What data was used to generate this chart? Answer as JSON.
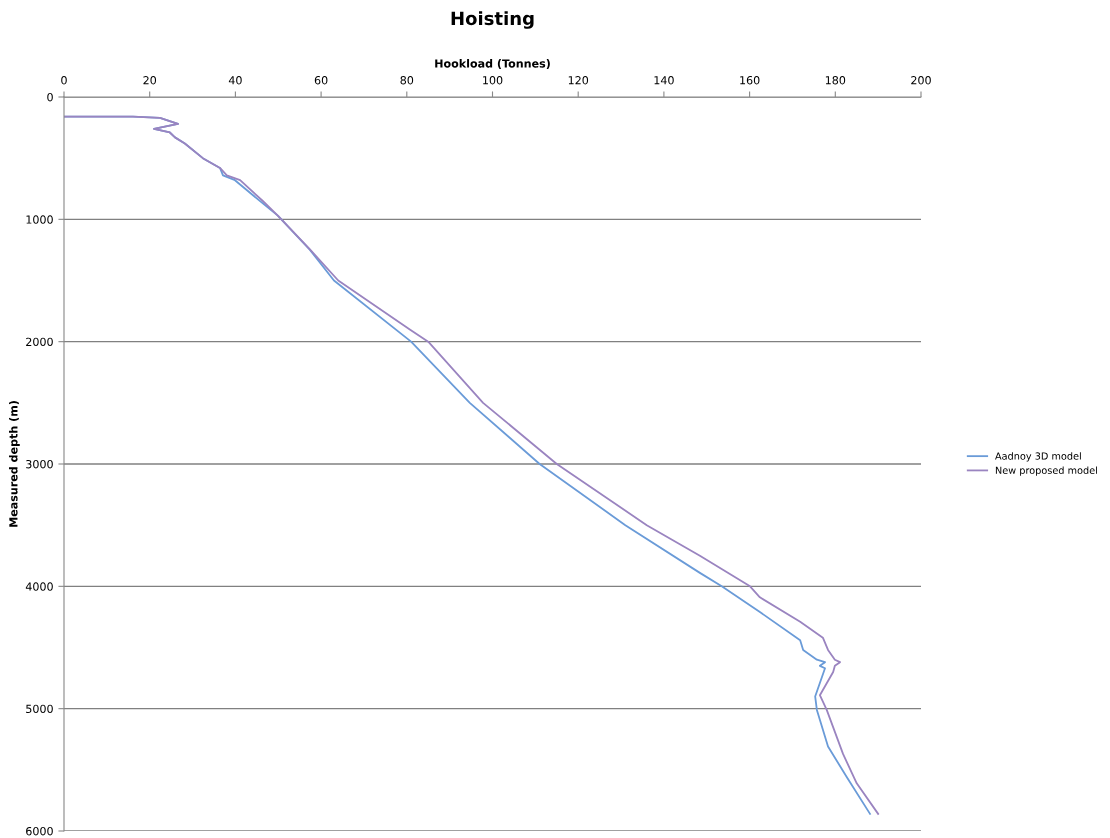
{
  "chart_data": {
    "type": "line",
    "title": "Hoisting",
    "xlabel": "Hookload (Tonnes)",
    "ylabel": "Measured depth (m)",
    "xlim": [
      0,
      200
    ],
    "xticks": [
      0,
      20,
      40,
      60,
      80,
      100,
      120,
      140,
      160,
      180,
      200
    ],
    "ylim": [
      6000,
      0
    ],
    "yticks": [
      0,
      1000,
      2000,
      3000,
      4000,
      5000,
      6000
    ],
    "grid": "y",
    "legend": "right",
    "marker": "none",
    "line_style": "solid",
    "series": [
      {
        "name": "Aadnoy 3D model",
        "color": "#6a9bd8",
        "x": [
          0,
          16.1,
          22.4,
          26.6,
          21.0,
          24.7,
          25.9,
          28.2,
          32.4,
          36.4,
          37.1,
          39.9,
          46.4,
          49.9,
          57.4,
          63,
          81,
          94.7,
          111,
          131,
          148.4,
          153.5,
          162.4,
          171.8,
          172.5,
          175.7,
          177.6,
          176.4,
          177.6,
          175.3,
          175.7,
          178.3,
          182.7,
          188.1
        ],
        "values": [
          160,
          160,
          170,
          220,
          260,
          290,
          330,
          380,
          500,
          580,
          640,
          680,
          870,
          970,
          1250,
          1500,
          2000,
          2500,
          3000,
          3500,
          3890,
          4000,
          4210,
          4440,
          4520,
          4600,
          4620,
          4650,
          4670,
          4900,
          5010,
          5310,
          5560,
          5860
        ]
      },
      {
        "name": "New proposed model",
        "color": "#9a84c0",
        "x": [
          0,
          16.1,
          22.4,
          26.6,
          21.0,
          24.7,
          25.9,
          28.2,
          32.4,
          36.4,
          38.0,
          41.1,
          46.4,
          49.9,
          57.5,
          64,
          80.7,
          85,
          97.8,
          115,
          136,
          148.4,
          160.1,
          162.4,
          171.8,
          177.1,
          178.3,
          179.9,
          181.1,
          179.9,
          179.5,
          176.4,
          178.0,
          181.8,
          185,
          190
        ],
        "values": [
          160,
          160,
          170,
          220,
          260,
          290,
          330,
          380,
          500,
          580,
          640,
          680,
          850,
          970,
          1250,
          1500,
          1900,
          2000,
          2500,
          3000,
          3500,
          3750,
          4000,
          4090,
          4290,
          4420,
          4520,
          4600,
          4620,
          4650,
          4700,
          4890,
          5010,
          5370,
          5610,
          5860
        ]
      }
    ]
  }
}
